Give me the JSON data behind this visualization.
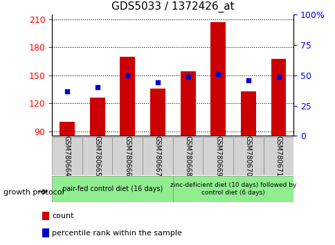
{
  "title": "GDS5033 / 1372426_at",
  "samples": [
    "GSM780664",
    "GSM780665",
    "GSM780666",
    "GSM780667",
    "GSM780668",
    "GSM780669",
    "GSM780670",
    "GSM780671"
  ],
  "counts": [
    100,
    126,
    170,
    136,
    154,
    207,
    133,
    168
  ],
  "percentiles": [
    37,
    40,
    50,
    44,
    49,
    51,
    46,
    49
  ],
  "ylim_left": [
    85,
    215
  ],
  "ylim_right": [
    0,
    100
  ],
  "yticks_left": [
    90,
    120,
    150,
    180,
    210
  ],
  "yticks_right": [
    0,
    25,
    50,
    75,
    100
  ],
  "ytick_labels_right": [
    "0",
    "25",
    "50",
    "75",
    "100%"
  ],
  "bar_color": "#cc0000",
  "dot_color": "#0000cc",
  "bar_width": 0.5,
  "group1_label": "pair-fed control diet (16 days)",
  "group2_label": "zinc-deficient diet (10 days) followed by\ncontrol diet (6 days)",
  "group1_indices": [
    0,
    1,
    2,
    3
  ],
  "group2_indices": [
    4,
    5,
    6,
    7
  ],
  "group_color": "#90ee90",
  "growth_protocol_label": "growth protocol",
  "legend_count_label": "count",
  "legend_percentile_label": "percentile rank within the sample",
  "xlabel_area_color": "#d3d3d3",
  "title_fontsize": 11,
  "tick_fontsize": 9,
  "sample_fontsize": 7,
  "group_fontsize": 7,
  "legend_fontsize": 8
}
